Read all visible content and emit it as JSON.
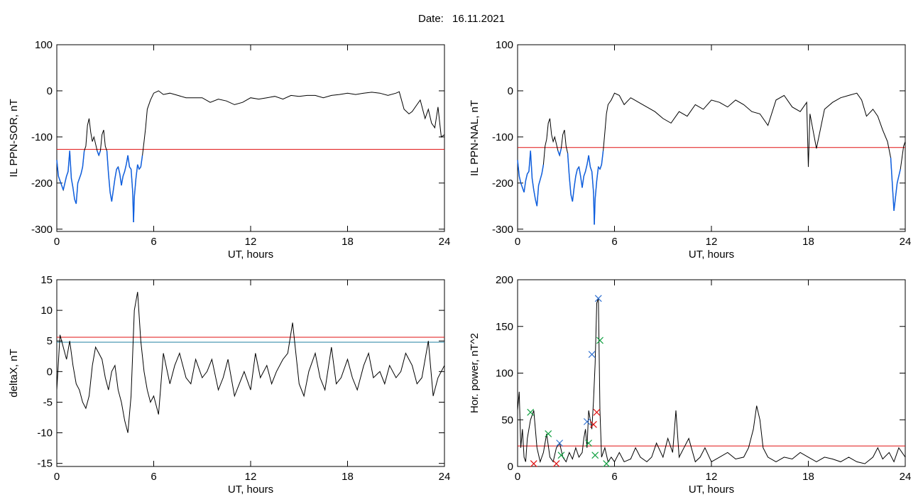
{
  "header": {
    "date_label": "Date:",
    "date_value": "16.11.2021"
  },
  "colors": {
    "line": "#000000",
    "threshold": "#e01010",
    "highlight": "#1060e0",
    "threshold2": "#2080a0",
    "marker_blue": "#3070d0",
    "marker_red": "#e01010",
    "marker_green": "#10a040"
  },
  "chart_data": [
    {
      "type": "line",
      "id": "ppn-sor",
      "xlabel": "UT, hours",
      "ylabel": "IL PPN-SOR, nT",
      "xlim": [
        0,
        24
      ],
      "ylim": [
        -305,
        100
      ],
      "xticks": [
        0,
        6,
        12,
        18,
        24
      ],
      "yticks": [
        -300,
        -200,
        -100,
        0,
        100
      ],
      "threshold": -127,
      "highlight_below": -127,
      "series": [
        {
          "x": [
            0,
            0.1,
            0.2,
            0.3,
            0.4,
            0.5,
            0.6,
            0.7,
            0.8,
            0.9,
            1.0,
            1.1,
            1.2,
            1.3,
            1.5,
            1.6,
            1.7,
            1.8,
            1.9,
            2.0,
            2.1,
            2.2,
            2.3,
            2.5,
            2.6,
            2.7,
            2.8,
            2.9,
            3.0,
            3.1,
            3.2,
            3.3,
            3.4,
            3.5,
            3.6,
            3.7,
            3.8,
            3.9,
            4.0,
            4.1,
            4.2,
            4.3,
            4.4,
            4.5,
            4.6,
            4.7,
            4.75,
            4.8,
            4.9,
            5.0,
            5.1,
            5.2,
            5.3,
            5.4,
            5.5,
            5.6,
            5.8,
            6.0,
            6.3,
            6.6,
            7.0,
            7.5,
            8.0,
            8.5,
            9.0,
            9.5,
            10.0,
            10.5,
            11.0,
            11.5,
            12.0,
            12.5,
            13.0,
            13.5,
            14.0,
            14.5,
            15.0,
            15.5,
            16.0,
            16.5,
            17.0,
            17.5,
            18.0,
            18.5,
            19.0,
            19.5,
            20.0,
            20.5,
            21.0,
            21.2,
            21.5,
            21.8,
            22.0,
            22.3,
            22.5,
            22.8,
            23.0,
            23.2,
            23.4,
            23.6,
            23.8,
            24.0
          ],
          "y": [
            -150,
            -185,
            -195,
            -205,
            -215,
            -200,
            -185,
            -175,
            -130,
            -190,
            -210,
            -235,
            -245,
            -200,
            -180,
            -165,
            -130,
            -120,
            -75,
            -60,
            -90,
            -110,
            -100,
            -130,
            -140,
            -130,
            -95,
            -85,
            -120,
            -130,
            -180,
            -220,
            -240,
            -215,
            -190,
            -170,
            -165,
            -180,
            -205,
            -185,
            -175,
            -160,
            -140,
            -165,
            -170,
            -220,
            -285,
            -230,
            -190,
            -160,
            -170,
            -165,
            -140,
            -110,
            -80,
            -40,
            -20,
            -5,
            0,
            -8,
            -5,
            -10,
            -15,
            -15,
            -15,
            -25,
            -18,
            -22,
            -30,
            -25,
            -15,
            -18,
            -15,
            -12,
            -18,
            -10,
            -12,
            -10,
            -10,
            -15,
            -10,
            -8,
            -5,
            -8,
            -5,
            -3,
            -5,
            -10,
            -5,
            -2,
            -40,
            -50,
            -45,
            -30,
            -20,
            -60,
            -40,
            -70,
            -80,
            -35,
            -100,
            -95
          ]
        }
      ]
    },
    {
      "type": "line",
      "id": "ppn-nal",
      "xlabel": "UT, hours",
      "ylabel": "IL PPN-NAL, nT",
      "xlim": [
        0,
        24
      ],
      "ylim": [
        -305,
        100
      ],
      "xticks": [
        0,
        6,
        12,
        18,
        24
      ],
      "yticks": [
        -300,
        -200,
        -100,
        0,
        100
      ],
      "threshold": -123,
      "highlight_below": -123,
      "series": [
        {
          "x": [
            0,
            0.1,
            0.2,
            0.3,
            0.4,
            0.5,
            0.6,
            0.7,
            0.8,
            0.9,
            1.0,
            1.1,
            1.2,
            1.3,
            1.5,
            1.6,
            1.7,
            1.8,
            1.9,
            2.0,
            2.1,
            2.2,
            2.3,
            2.5,
            2.6,
            2.7,
            2.8,
            2.9,
            3.0,
            3.1,
            3.2,
            3.3,
            3.4,
            3.5,
            3.6,
            3.7,
            3.8,
            3.9,
            4.0,
            4.1,
            4.2,
            4.3,
            4.4,
            4.5,
            4.6,
            4.7,
            4.75,
            4.8,
            4.9,
            5.0,
            5.1,
            5.2,
            5.3,
            5.4,
            5.5,
            5.6,
            5.8,
            6.0,
            6.3,
            6.6,
            7.0,
            7.5,
            8.0,
            8.5,
            9.0,
            9.5,
            10.0,
            10.5,
            11.0,
            11.5,
            12.0,
            12.5,
            13.0,
            13.5,
            14.0,
            14.5,
            15.0,
            15.5,
            16.0,
            16.5,
            17.0,
            17.5,
            17.9,
            18.0,
            18.1,
            18.5,
            19.0,
            19.5,
            20.0,
            20.5,
            21.0,
            21.3,
            21.6,
            22.0,
            22.3,
            22.6,
            22.9,
            23.1,
            23.3,
            23.5,
            23.7,
            23.9,
            24.0
          ],
          "y": [
            -150,
            -185,
            -200,
            -210,
            -220,
            -195,
            -180,
            -175,
            -130,
            -190,
            -215,
            -235,
            -250,
            -205,
            -180,
            -160,
            -120,
            -105,
            -70,
            -60,
            -95,
            -110,
            -100,
            -130,
            -140,
            -125,
            -95,
            -85,
            -120,
            -135,
            -185,
            -225,
            -240,
            -210,
            -185,
            -170,
            -165,
            -185,
            -210,
            -185,
            -175,
            -160,
            -140,
            -165,
            -175,
            -220,
            -290,
            -235,
            -195,
            -165,
            -170,
            -160,
            -130,
            -90,
            -50,
            -30,
            -20,
            -5,
            -10,
            -30,
            -15,
            -25,
            -35,
            -45,
            -60,
            -70,
            -45,
            -55,
            -30,
            -40,
            -20,
            -25,
            -35,
            -20,
            -30,
            -45,
            -50,
            -75,
            -20,
            -10,
            -35,
            -45,
            -25,
            -165,
            -50,
            -125,
            -40,
            -25,
            -15,
            -10,
            -5,
            -20,
            -55,
            -40,
            -55,
            -85,
            -110,
            -145,
            -260,
            -200,
            -170,
            -120,
            -110
          ]
        }
      ]
    },
    {
      "type": "line",
      "id": "deltax",
      "xlabel": "UT, hours",
      "ylabel": "deltaX, nT",
      "xlim": [
        0,
        24
      ],
      "ylim": [
        -15.5,
        15
      ],
      "xticks": [
        0,
        6,
        12,
        18,
        24
      ],
      "yticks": [
        -15,
        -10,
        -5,
        0,
        5,
        10,
        15
      ],
      "threshold": 5.6,
      "threshold2": 4.8,
      "series": [
        {
          "x": [
            0,
            0.2,
            0.4,
            0.6,
            0.8,
            1.0,
            1.2,
            1.4,
            1.6,
            1.8,
            2.0,
            2.2,
            2.4,
            2.6,
            2.8,
            3.0,
            3.2,
            3.4,
            3.6,
            3.8,
            4.0,
            4.2,
            4.4,
            4.6,
            4.8,
            5.0,
            5.2,
            5.4,
            5.6,
            5.8,
            6.0,
            6.3,
            6.6,
            7.0,
            7.3,
            7.6,
            8.0,
            8.3,
            8.6,
            9.0,
            9.3,
            9.6,
            10.0,
            10.3,
            10.6,
            11.0,
            11.3,
            11.6,
            12.0,
            12.3,
            12.6,
            13.0,
            13.3,
            13.6,
            14.0,
            14.3,
            14.6,
            15.0,
            15.3,
            15.6,
            16.0,
            16.3,
            16.6,
            17.0,
            17.3,
            17.6,
            18.0,
            18.3,
            18.6,
            19.0,
            19.3,
            19.6,
            20.0,
            20.3,
            20.6,
            21.0,
            21.3,
            21.6,
            22.0,
            22.3,
            22.6,
            23.0,
            23.3,
            23.6,
            24.0
          ],
          "y": [
            -3,
            6,
            4,
            2,
            5,
            1,
            -2,
            -3,
            -5,
            -6,
            -4,
            1,
            4,
            3,
            2,
            -1,
            -3,
            0,
            1,
            -3,
            -5,
            -8,
            -10,
            -4,
            10,
            13,
            5,
            0,
            -3,
            -5,
            -4,
            -7,
            3,
            -2,
            1,
            3,
            -1,
            -2,
            2,
            -1,
            0,
            2,
            -3,
            -1,
            2,
            -4,
            -2,
            0,
            -3,
            3,
            -1,
            1,
            -2,
            0,
            2,
            3,
            8,
            -2,
            -4,
            0,
            3,
            -1,
            -3,
            4,
            -2,
            -1,
            2,
            -1,
            -3,
            1,
            3,
            -1,
            0,
            -2,
            1,
            -1,
            0,
            3,
            1,
            -2,
            -1,
            5,
            -4,
            -1,
            1
          ]
        }
      ]
    },
    {
      "type": "line",
      "id": "hor-power",
      "xlabel": "UT, hours",
      "ylabel": "Hor. power, nT^2",
      "xlim": [
        0,
        24
      ],
      "ylim": [
        0,
        200
      ],
      "xticks": [
        0,
        6,
        12,
        18,
        24
      ],
      "yticks": [
        0,
        50,
        100,
        150,
        200
      ],
      "threshold": 22,
      "series": [
        {
          "x": [
            0,
            0.1,
            0.2,
            0.3,
            0.4,
            0.5,
            0.6,
            0.8,
            1.0,
            1.2,
            1.4,
            1.6,
            1.8,
            2.0,
            2.2,
            2.4,
            2.6,
            2.8,
            3.0,
            3.2,
            3.4,
            3.6,
            3.8,
            4.0,
            4.1,
            4.2,
            4.3,
            4.4,
            4.5,
            4.6,
            4.7,
            4.8,
            4.9,
            5.0,
            5.1,
            5.2,
            5.4,
            5.6,
            5.8,
            6.0,
            6.3,
            6.6,
            7.0,
            7.3,
            7.6,
            8.0,
            8.3,
            8.6,
            9.0,
            9.3,
            9.6,
            9.8,
            10.0,
            10.3,
            10.6,
            11.0,
            11.3,
            11.6,
            12.0,
            12.5,
            13.0,
            13.5,
            14.0,
            14.3,
            14.6,
            14.8,
            15.0,
            15.2,
            15.5,
            16.0,
            16.5,
            17.0,
            17.5,
            18.0,
            18.5,
            19.0,
            19.5,
            20.0,
            20.5,
            21.0,
            21.5,
            22.0,
            22.3,
            22.6,
            23.0,
            23.3,
            23.6,
            24.0
          ],
          "y": [
            60,
            80,
            20,
            40,
            10,
            5,
            30,
            50,
            60,
            20,
            5,
            15,
            35,
            10,
            5,
            20,
            25,
            10,
            5,
            15,
            8,
            20,
            10,
            15,
            30,
            40,
            20,
            60,
            50,
            40,
            70,
            110,
            175,
            180,
            60,
            10,
            20,
            5,
            10,
            5,
            15,
            5,
            8,
            20,
            10,
            5,
            10,
            25,
            10,
            30,
            15,
            60,
            10,
            20,
            30,
            5,
            10,
            20,
            5,
            10,
            15,
            8,
            10,
            20,
            40,
            65,
            50,
            20,
            10,
            5,
            10,
            8,
            15,
            10,
            5,
            10,
            8,
            5,
            10,
            5,
            3,
            10,
            20,
            8,
            15,
            5,
            20,
            10
          ]
        }
      ],
      "markers": [
        {
          "x": 0.8,
          "y": 58,
          "color": "green"
        },
        {
          "x": 1.0,
          "y": 3,
          "color": "red"
        },
        {
          "x": 1.9,
          "y": 35,
          "color": "green"
        },
        {
          "x": 2.4,
          "y": 3,
          "color": "red"
        },
        {
          "x": 2.6,
          "y": 25,
          "color": "blue"
        },
        {
          "x": 2.7,
          "y": 12,
          "color": "green"
        },
        {
          "x": 4.3,
          "y": 48,
          "color": "blue"
        },
        {
          "x": 4.4,
          "y": 25,
          "color": "green"
        },
        {
          "x": 4.6,
          "y": 120,
          "color": "blue"
        },
        {
          "x": 4.7,
          "y": 45,
          "color": "red"
        },
        {
          "x": 4.8,
          "y": 12,
          "color": "green"
        },
        {
          "x": 4.9,
          "y": 58,
          "color": "red"
        },
        {
          "x": 5.0,
          "y": 180,
          "color": "blue"
        },
        {
          "x": 5.1,
          "y": 135,
          "color": "green"
        },
        {
          "x": 5.5,
          "y": 3,
          "color": "green"
        }
      ]
    }
  ]
}
